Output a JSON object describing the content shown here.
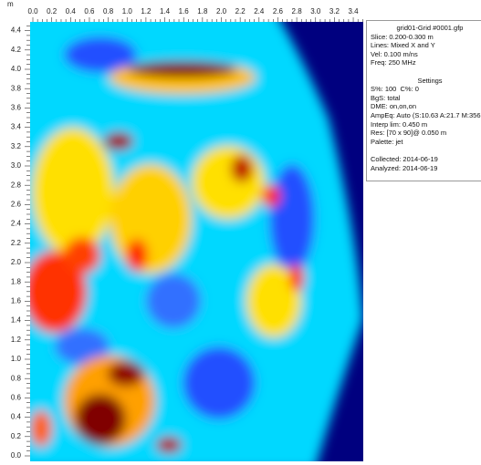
{
  "axis_unit": "m",
  "x_ticks": [
    "0.0",
    "0.2",
    "0.4",
    "0.6",
    "0.8",
    "1.0",
    "1.2",
    "1.4",
    "1.6",
    "1.8",
    "2.0",
    "2.2",
    "2.4",
    "2.6",
    "2.8",
    "3.0",
    "3.2",
    "3.4"
  ],
  "y_ticks": [
    "0.0",
    "0.2",
    "0.4",
    "0.6",
    "0.8",
    "1.0",
    "1.2",
    "1.4",
    "1.6",
    "1.8",
    "2.0",
    "2.2",
    "2.4",
    "2.6",
    "2.8",
    "3.0",
    "3.2",
    "3.4",
    "3.6",
    "3.8",
    "4.0",
    "4.2",
    "4.4"
  ],
  "info_panel": {
    "title": "grid01-Grid #0001.gfp",
    "lines": [
      "Slice: 0.200-0.300 m",
      "Lines: Mixed X and Y",
      "Vel: 0.100 m/ns",
      "Freq: 250 MHz"
    ],
    "settings_title": "Settings",
    "settings": [
      "S%: 100  C%: 0",
      "BgS: total",
      "DME: on,on,on",
      "AmpEq: Auto (S:10.63 A:21.7 M:356",
      "Interp lim: 0.450 m",
      "Res: [70 x 90]@ 0.050 m",
      "Palette: jet"
    ],
    "dates": [
      "Collected: 2014-06-19",
      "Analyzed: 2014-06-19"
    ]
  }
}
